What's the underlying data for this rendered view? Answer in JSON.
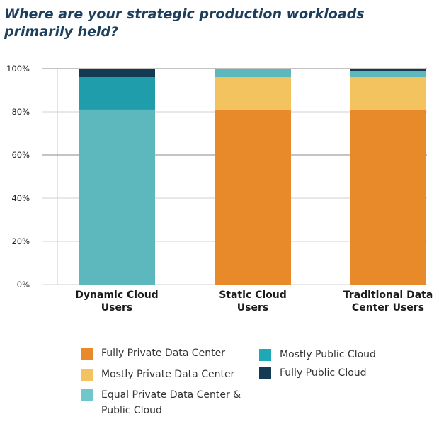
{
  "title": "Where are your strategic production workloads primarily held?",
  "colors": {
    "Fully Private Data Center": "#e8892a",
    "Mostly Private Data Center": "#f2c35f",
    "Equal Private Data Center & Public Cloud": "#5cb8bd",
    "Mostly Public Cloud": "#1f9dab",
    "Fully Public Cloud": "#143a52"
  },
  "legend": [
    {
      "label": "Fully Private Data Center",
      "color": "#e8892a"
    },
    {
      "label": "Mostly Private Data Center",
      "color": "#f2c35f"
    },
    {
      "label": "Equal Private Data Center & Public Cloud",
      "color": "#6fc6cb"
    },
    {
      "label": "Mostly Public Cloud",
      "color": "#1fa9b7"
    },
    {
      "label": "Fully Public Cloud",
      "color": "#153a53"
    }
  ],
  "chart_data": {
    "type": "bar",
    "stacked": true,
    "categories": [
      "Dynamic Cloud Users",
      "Static Cloud Users",
      "Traditional Data Center Users"
    ],
    "category_lines": [
      [
        "Dynamic Cloud",
        "Users"
      ],
      [
        "Static Cloud",
        "Users"
      ],
      [
        "Traditional Data",
        "Center Users"
      ]
    ],
    "series": [
      {
        "name": "Fully Private Data Center",
        "values": [
          0,
          81,
          81
        ]
      },
      {
        "name": "Mostly Private Data Center",
        "values": [
          0,
          15,
          15
        ]
      },
      {
        "name": "Equal Private Data Center & Public Cloud",
        "values": [
          81,
          4,
          3
        ]
      },
      {
        "name": "Mostly Public Cloud",
        "values": [
          15,
          0,
          0
        ]
      },
      {
        "name": "Fully Public Cloud",
        "values": [
          4,
          0,
          1
        ]
      }
    ],
    "yticks": [
      "0%",
      "20%",
      "40%",
      "60%",
      "80%",
      "100%"
    ],
    "ylim": [
      0,
      100
    ],
    "grid": true,
    "legend_position": "bottom"
  }
}
